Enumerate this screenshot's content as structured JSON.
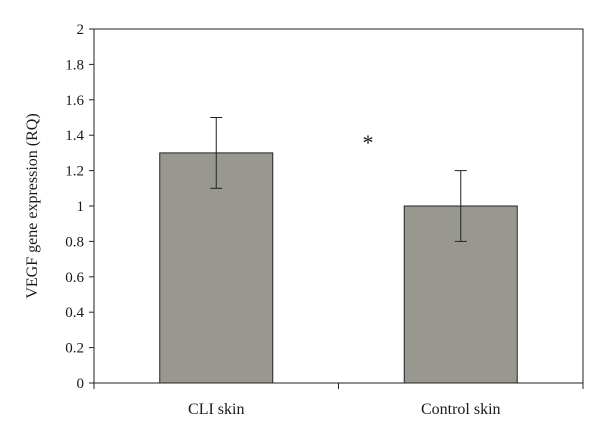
{
  "chart_data": {
    "type": "bar",
    "categories": [
      "CLI skin",
      "Control skin"
    ],
    "values": [
      1.3,
      1.0
    ],
    "error": [
      0.2,
      0.2
    ],
    "title": "",
    "xlabel": "",
    "ylabel": "VEGF gene expression (RQ)",
    "ylim": [
      0,
      2
    ],
    "yticks": [
      "0",
      "0.2",
      "0.4",
      "0.6",
      "0.8",
      "1",
      "1.2",
      "1.4",
      "1.6",
      "1.8",
      "2"
    ],
    "grid": false,
    "legend": "none",
    "bar_color": "#999890",
    "annotation": "*"
  }
}
